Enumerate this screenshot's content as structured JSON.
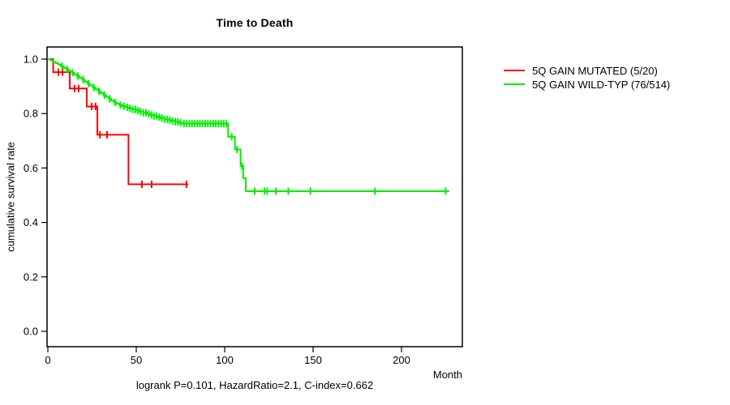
{
  "chart_data": {
    "type": "line",
    "subtype": "kaplan-meier-step",
    "title": "Time to Death",
    "xlabel": "Month",
    "ylabel": "cumulative survival rate",
    "caption": "logrank P=0.101, HazardRatio=2.1, C-index=0.662",
    "x_ticks": [
      0,
      50,
      100,
      150,
      200
    ],
    "y_ticks": [
      "1.0",
      "0.8",
      "0.6",
      "0.4",
      "0.2",
      "0.0"
    ],
    "xlim": [
      0,
      235
    ],
    "ylim": [
      0.0,
      1.0
    ],
    "grid": false,
    "legend_position": "right-outside",
    "legend": [
      {
        "label": "5Q GAIN MUTATED (5/20)",
        "color": "#ff0000"
      },
      {
        "label": "5Q GAIN WILD-TYP (76/514)",
        "color": "#00ee00"
      }
    ],
    "series": [
      {
        "name": "5Q GAIN MUTATED (5/20)",
        "color": "#ff0000",
        "steps": [
          [
            0,
            1.0
          ],
          [
            3,
            0.952
          ],
          [
            12.4,
            0.892
          ],
          [
            22,
            0.826
          ],
          [
            28,
            0.722
          ],
          [
            45.6,
            0.54
          ]
        ],
        "end_month": 79.5,
        "censor_ticks": [
          6,
          8.3,
          15.1,
          17.4,
          24.8,
          27,
          29.5,
          33.5,
          53.2,
          58.7,
          78.4
        ]
      },
      {
        "name": "5Q GAIN WILD-TYP (76/514)",
        "color": "#00ee00",
        "steps": [
          [
            0,
            1.0
          ],
          [
            1.5,
            0.995
          ],
          [
            3,
            0.99
          ],
          [
            4.5,
            0.985
          ],
          [
            6,
            0.98
          ],
          [
            7.5,
            0.974
          ],
          [
            9,
            0.968
          ],
          [
            10.5,
            0.962
          ],
          [
            12,
            0.956
          ],
          [
            13.5,
            0.95
          ],
          [
            15,
            0.944
          ],
          [
            16.5,
            0.938
          ],
          [
            18,
            0.931
          ],
          [
            19.5,
            0.924
          ],
          [
            21,
            0.917
          ],
          [
            22.5,
            0.91
          ],
          [
            24,
            0.903
          ],
          [
            25.5,
            0.896
          ],
          [
            27,
            0.889
          ],
          [
            28.5,
            0.882
          ],
          [
            30,
            0.875
          ],
          [
            31.5,
            0.868
          ],
          [
            33,
            0.861
          ],
          [
            34.5,
            0.854
          ],
          [
            36,
            0.847
          ],
          [
            37.5,
            0.841
          ],
          [
            39,
            0.836
          ],
          [
            40.5,
            0.831
          ],
          [
            42,
            0.827
          ],
          [
            44,
            0.823
          ],
          [
            46,
            0.819
          ],
          [
            48,
            0.815
          ],
          [
            50,
            0.811
          ],
          [
            52,
            0.807
          ],
          [
            54,
            0.803
          ],
          [
            56,
            0.799
          ],
          [
            58,
            0.795
          ],
          [
            60,
            0.791
          ],
          [
            62,
            0.787
          ],
          [
            64,
            0.783
          ],
          [
            66,
            0.779
          ],
          [
            68,
            0.776
          ],
          [
            70,
            0.773
          ],
          [
            72,
            0.77
          ],
          [
            74,
            0.766
          ],
          [
            76,
            0.763
          ],
          [
            102,
            0.715
          ],
          [
            105.8,
            0.668
          ],
          [
            109,
            0.608
          ],
          [
            110.5,
            0.563
          ],
          [
            112,
            0.515
          ]
        ],
        "end_month": 227,
        "censor_ticks": [
          8,
          11,
          14,
          17,
          20,
          23,
          26,
          29,
          32,
          35,
          38,
          41,
          43,
          45,
          46.5,
          48,
          49.5,
          51,
          52.5,
          54,
          55.5,
          57,
          58.5,
          60,
          61.5,
          63,
          64.5,
          66,
          67.5,
          69,
          70.5,
          72,
          73.5,
          75,
          77,
          78.5,
          80,
          81.5,
          83,
          84.5,
          86,
          87.5,
          89,
          90.5,
          92,
          93.5,
          95,
          96.5,
          98,
          99.5,
          101,
          104,
          107,
          109.8,
          117,
          122.5,
          124,
          129,
          136,
          148.5,
          185,
          225
        ]
      }
    ]
  }
}
